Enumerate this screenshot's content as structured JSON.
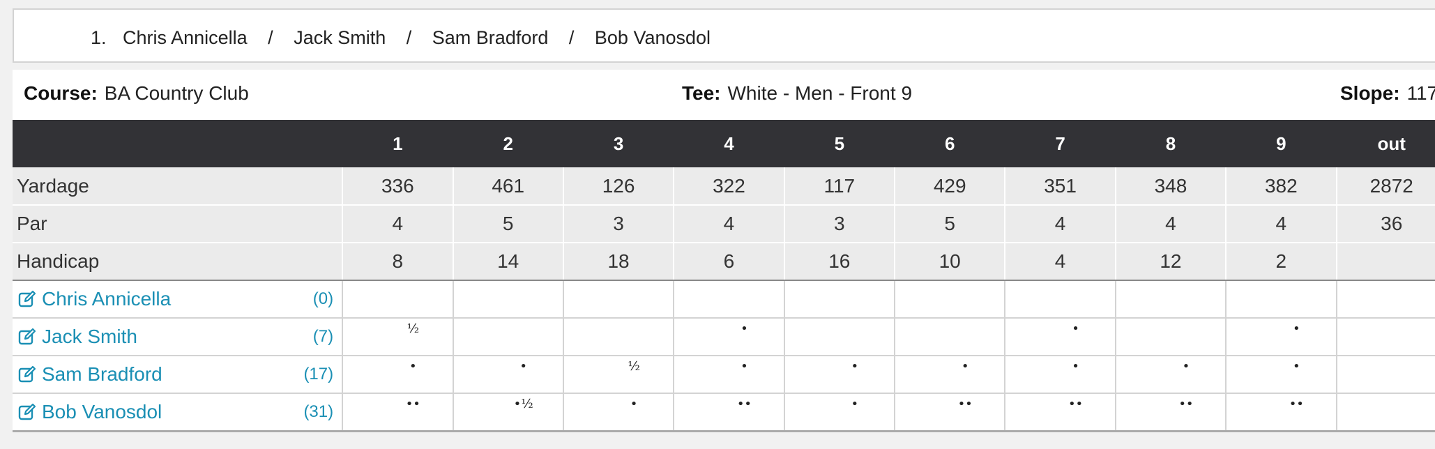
{
  "group": {
    "number": "1.",
    "players": [
      "Chris Annicella",
      "Jack Smith",
      "Sam Bradford",
      "Bob Vanosdol"
    ],
    "separator": "/"
  },
  "course_info": {
    "course_label": "Course:",
    "course_value": "BA Country Club",
    "tee_label": "Tee:",
    "tee_value": "White - Men - Front 9",
    "slope_label": "Slope:",
    "slope_value": "117"
  },
  "scorecard": {
    "headers": [
      "1",
      "2",
      "3",
      "4",
      "5",
      "6",
      "7",
      "8",
      "9",
      "out"
    ],
    "rows": [
      {
        "label": "Yardage",
        "values": [
          "336",
          "461",
          "126",
          "322",
          "117",
          "429",
          "351",
          "348",
          "382",
          "2872"
        ]
      },
      {
        "label": "Par",
        "values": [
          "4",
          "5",
          "3",
          "4",
          "3",
          "5",
          "4",
          "4",
          "4",
          "36"
        ]
      },
      {
        "label": "Handicap",
        "values": [
          "8",
          "14",
          "18",
          "6",
          "16",
          "10",
          "4",
          "12",
          "2",
          ""
        ]
      }
    ],
    "players": [
      {
        "name": "Chris Annicella",
        "handicap": "(0)",
        "strokes": [
          "",
          "",
          "",
          "",
          "",
          "",
          "",
          "",
          "",
          ""
        ]
      },
      {
        "name": "Jack Smith",
        "handicap": "(7)",
        "strokes": [
          "½",
          "",
          "",
          "•",
          "",
          "",
          "•",
          "",
          "•",
          ""
        ]
      },
      {
        "name": "Sam Bradford",
        "handicap": "(17)",
        "strokes": [
          "•",
          "•",
          "½",
          "•",
          "•",
          "•",
          "•",
          "•",
          "•",
          ""
        ]
      },
      {
        "name": "Bob Vanosdol",
        "handicap": "(31)",
        "strokes": [
          "••",
          "•½",
          "•",
          "••",
          "•",
          "••",
          "••",
          "••",
          "••",
          ""
        ]
      }
    ]
  },
  "colors": {
    "header_bg": "#323236",
    "link": "#1a8fb4"
  },
  "icons": {
    "edit": "edit-icon"
  }
}
